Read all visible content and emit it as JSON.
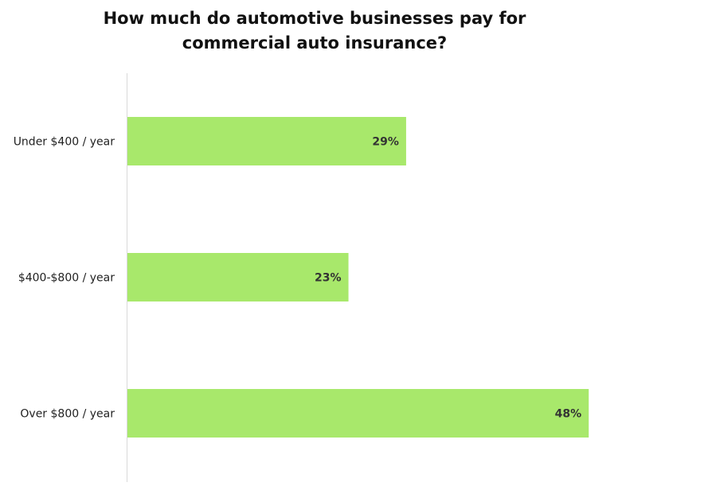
{
  "chart_data": {
    "type": "bar",
    "orientation": "horizontal",
    "title_lines": [
      "How much do automotive businesses pay for",
      "commercial auto insurance?"
    ],
    "categories": [
      "Under $400 / year",
      "$400-$800 / year",
      "Over $800 / year"
    ],
    "values": [
      29,
      23,
      48
    ],
    "value_labels": [
      "29%",
      "23%",
      "48%"
    ],
    "xlim": [
      0,
      60
    ],
    "grid": false,
    "legend": "none",
    "bar_color": "#a8e86b",
    "axis_color": "#d9d9d9"
  }
}
